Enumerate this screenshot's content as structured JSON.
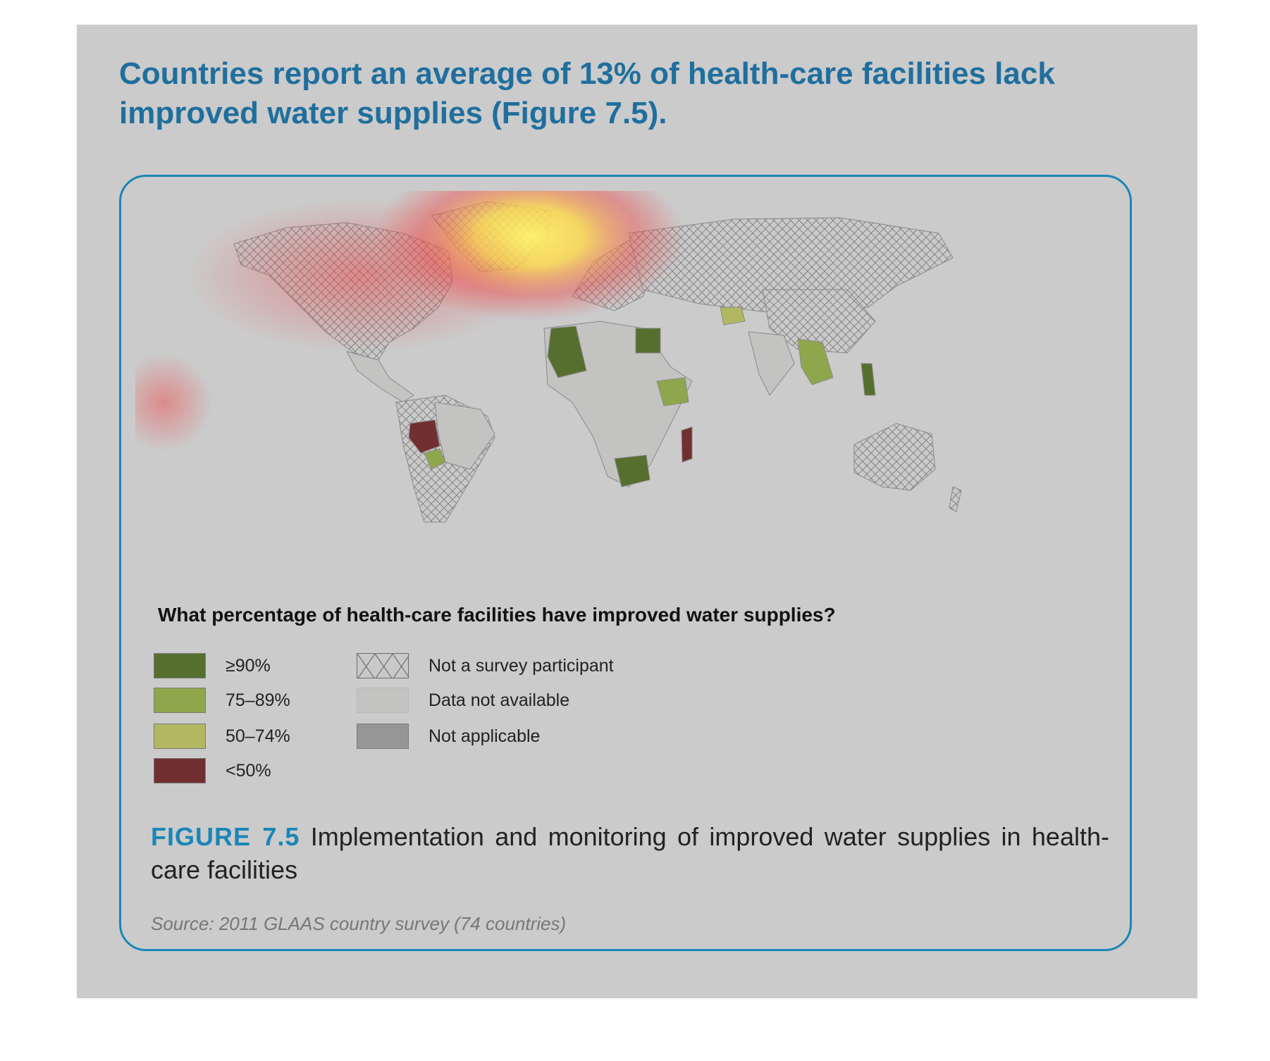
{
  "headline": "Countries report an average of 13% of health-care facilities lack improved water supplies (Figure 7.5).",
  "map": {
    "legend_title": "What percentage of health-care facilities have improved water supplies?",
    "legend": [
      {
        "label": "≥90%",
        "color": "#566f2f",
        "pattern": "solid"
      },
      {
        "label": "75–89%",
        "color": "#8fa74c",
        "pattern": "solid"
      },
      {
        "label": "50–74%",
        "color": "#b3b762",
        "pattern": "solid"
      },
      {
        "label": "<50%",
        "color": "#712f32",
        "pattern": "solid"
      },
      {
        "label": "Not a survey participant",
        "color": "#c9c9c9",
        "pattern": "crosshatch"
      },
      {
        "label": "Data not available",
        "color": "#c3c3c1",
        "pattern": "solid"
      },
      {
        "label": "Not applicable",
        "color": "#969696",
        "pattern": "solid"
      }
    ]
  },
  "caption": {
    "figure_label": "FIGURE 7.5",
    "text": "Implementation and monitoring of improved water supplies in health-care facilities"
  },
  "source": "Source: 2011 GLAAS country survey (74 countries)",
  "colors": {
    "panel_background": "#cbcbcb",
    "card_border": "#1a86b7",
    "headline": "#1f6f9e",
    "heatmap_hot": "#fff36a",
    "heatmap_warm": "#ee4a4a"
  }
}
